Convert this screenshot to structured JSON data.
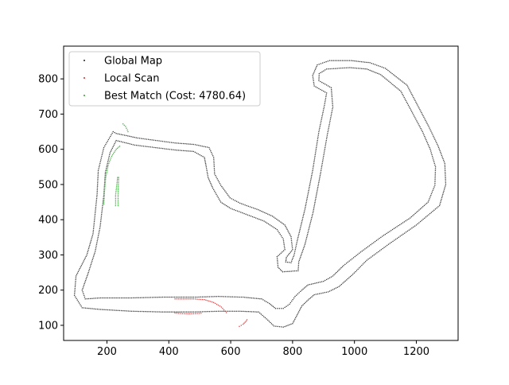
{
  "chart_data": {
    "type": "scatter",
    "title": "",
    "xlabel": "",
    "ylabel": "",
    "xlim": [
      60,
      1335
    ],
    "ylim": [
      57,
      893
    ],
    "xticks": [
      200,
      400,
      600,
      800,
      1000,
      1200
    ],
    "yticks": [
      100,
      200,
      300,
      400,
      500,
      600,
      700,
      800
    ],
    "grid": false,
    "legend_position": "upper-left",
    "series": [
      {
        "name": "Global Map",
        "color": "#1f1f1f",
        "paths": [
          [
            [
              230,
              625
            ],
            [
              290,
              612
            ],
            [
              420,
              598
            ],
            [
              480,
              594
            ],
            [
              515,
              577
            ],
            [
              520,
              555
            ],
            [
              527,
              520
            ],
            [
              542,
              490
            ],
            [
              568,
              450
            ],
            [
              600,
              432
            ],
            [
              660,
              412
            ],
            [
              708,
              396
            ],
            [
              750,
              372
            ],
            [
              770,
              345
            ],
            [
              775,
              315
            ],
            [
              750,
              295
            ],
            [
              753,
              265
            ],
            [
              768,
              252
            ],
            [
              818,
              255
            ],
            [
              820,
              280
            ],
            [
              840,
              330
            ],
            [
              866,
              420
            ],
            [
              890,
              530
            ],
            [
              912,
              640
            ],
            [
              930,
              720
            ],
            [
              925,
              775
            ],
            [
              885,
              795
            ],
            [
              886,
              815
            ],
            [
              910,
              828
            ],
            [
              985,
              832
            ],
            [
              1040,
              828
            ],
            [
              1085,
              812
            ],
            [
              1150,
              765
            ],
            [
              1220,
              650
            ],
            [
              1245,
              600
            ],
            [
              1262,
              550
            ],
            [
              1260,
              498
            ],
            [
              1238,
              450
            ],
            [
              1180,
              405
            ],
            [
              1090,
              353
            ],
            [
              1020,
              308
            ],
            [
              965,
              270
            ],
            [
              930,
              240
            ],
            [
              900,
              225
            ],
            [
              850,
              215
            ],
            [
              830,
              200
            ],
            [
              808,
              182
            ],
            [
              790,
              160
            ],
            [
              770,
              148
            ],
            [
              745,
              148
            ],
            [
              725,
              162
            ],
            [
              700,
              175
            ],
            [
              640,
              180
            ],
            [
              560,
              182
            ],
            [
              480,
              180
            ],
            [
              380,
              180
            ],
            [
              280,
              178
            ],
            [
              180,
              178
            ],
            [
              130,
              175
            ],
            [
              120,
              200
            ],
            [
              140,
              250
            ],
            [
              162,
              310
            ],
            [
              178,
              380
            ],
            [
              190,
              470
            ],
            [
              195,
              535
            ],
            [
              210,
              590
            ],
            [
              230,
              625
            ]
          ],
          [
            [
              230,
              645
            ],
            [
              300,
              632
            ],
            [
              420,
              618
            ],
            [
              480,
              614
            ],
            [
              530,
              605
            ],
            [
              545,
              577
            ],
            [
              548,
              530
            ],
            [
              568,
              498
            ],
            [
              598,
              462
            ],
            [
              630,
              447
            ],
            [
              690,
              428
            ],
            [
              735,
              410
            ],
            [
              775,
              385
            ],
            [
              795,
              352
            ],
            [
              800,
              315
            ],
            [
              780,
              293
            ],
            [
              778,
              280
            ],
            [
              795,
              278
            ],
            [
              805,
              300
            ],
            [
              815,
              340
            ],
            [
              840,
              430
            ],
            [
              865,
              540
            ],
            [
              885,
              650
            ],
            [
              903,
              725
            ],
            [
              910,
              760
            ],
            [
              870,
              780
            ],
            [
              865,
              810
            ],
            [
              880,
              840
            ],
            [
              920,
              852
            ],
            [
              990,
              852
            ],
            [
              1050,
              846
            ],
            [
              1100,
              830
            ],
            [
              1170,
              782
            ],
            [
              1240,
              665
            ],
            [
              1270,
              610
            ],
            [
              1292,
              560
            ],
            [
              1295,
              500
            ],
            [
              1275,
              440
            ],
            [
              1200,
              385
            ],
            [
              1110,
              330
            ],
            [
              1040,
              285
            ],
            [
              995,
              245
            ],
            [
              950,
              210
            ],
            [
              915,
              195
            ],
            [
              870,
              187
            ],
            [
              850,
              172
            ],
            [
              830,
              155
            ],
            [
              815,
              130
            ],
            [
              800,
              105
            ],
            [
              770,
              95
            ],
            [
              740,
              98
            ],
            [
              720,
              115
            ],
            [
              690,
              138
            ],
            [
              630,
              140
            ],
            [
              560,
              140
            ],
            [
              480,
              138
            ],
            [
              380,
              138
            ],
            [
              280,
              140
            ],
            [
              180,
              145
            ],
            [
              120,
              150
            ],
            [
              95,
              185
            ],
            [
              100,
              240
            ],
            [
              135,
              300
            ],
            [
              155,
              360
            ],
            [
              168,
              470
            ],
            [
              172,
              540
            ],
            [
              190,
              605
            ],
            [
              220,
              650
            ],
            [
              230,
              645
            ]
          ]
        ]
      },
      {
        "name": "Local Scan",
        "color": "#d62728",
        "paths": [
          [
            [
              420,
              175
            ],
            [
              480,
              175
            ],
            [
              515,
              173
            ],
            [
              545,
              165
            ],
            [
              570,
              152
            ],
            [
              590,
              132
            ]
          ],
          [
            [
              420,
              135
            ],
            [
              450,
              133
            ],
            [
              480,
              133
            ],
            [
              510,
              135
            ]
          ],
          [
            [
              628,
              97
            ],
            [
              640,
              103
            ],
            [
              650,
              112
            ],
            [
              655,
              120
            ]
          ]
        ]
      },
      {
        "name": "Best Match (Cost: 4780.64)",
        "color": "#2ca02c",
        "paths": [
          [
            [
              190,
              445
            ],
            [
              192,
              480
            ],
            [
              196,
              520
            ],
            [
              204,
              555
            ],
            [
              215,
              580
            ],
            [
              230,
              600
            ],
            [
              245,
              612
            ]
          ],
          [
            [
              228,
              440
            ],
            [
              228,
              470
            ],
            [
              232,
              500
            ],
            [
              235,
              525
            ]
          ],
          [
            [
              236,
              440
            ],
            [
              236,
              470
            ],
            [
              237,
              500
            ],
            [
              238,
              525
            ]
          ],
          [
            [
              252,
              672
            ],
            [
              260,
              665
            ],
            [
              266,
              655
            ],
            [
              270,
              645
            ]
          ]
        ]
      }
    ]
  }
}
